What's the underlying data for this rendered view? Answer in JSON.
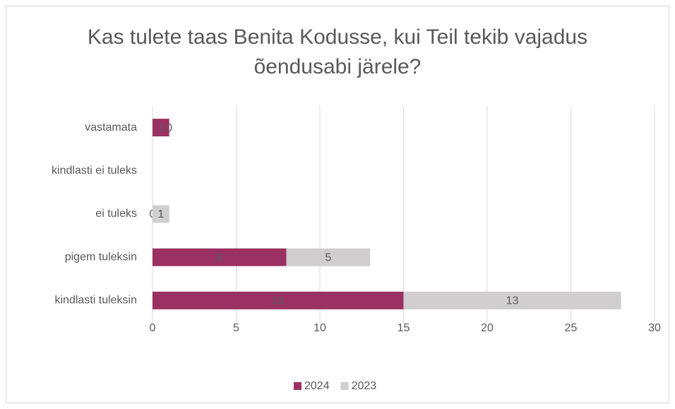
{
  "chart_data": {
    "type": "stacked-bar-horizontal",
    "title": "Kas tulete taas Benita Kodusse, kui Teil tekib vajadus õendusabi järele?",
    "categories": [
      "vastamata",
      "kindlasti ei tuleks",
      "ei tuleks",
      "pigem tuleksin",
      "kindlasti tuleksin"
    ],
    "series": [
      {
        "name": "2024",
        "color": "#9b3163",
        "label_color": "#ffffff",
        "values": [
          1,
          null,
          0,
          8,
          15
        ]
      },
      {
        "name": "2023",
        "color": "#d0cece",
        "label_color": "#404040",
        "values": [
          0,
          null,
          1,
          5,
          13
        ]
      }
    ],
    "xlim": [
      0,
      30
    ],
    "xticks": [
      0,
      5,
      10,
      15,
      20,
      25,
      30
    ],
    "grid": true,
    "legend": "bottom"
  }
}
